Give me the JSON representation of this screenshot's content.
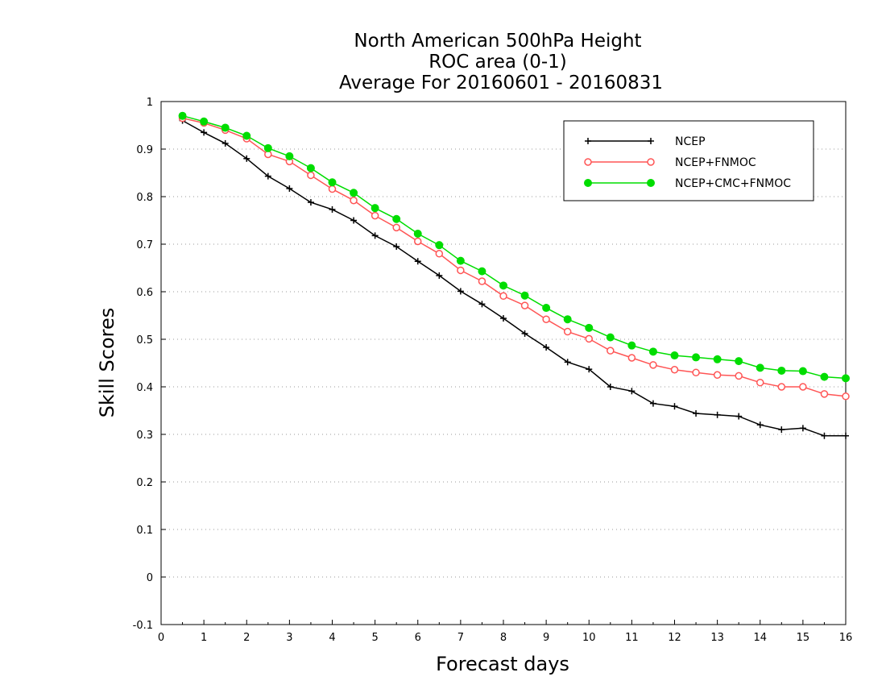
{
  "chart_data": {
    "type": "line",
    "title_lines": [
      "North American 500hPa Height",
      "ROC area (0-1)",
      "Average For 20160601 - 20160831"
    ],
    "xlabel": "Forecast days",
    "ylabel": "Skill Scores",
    "xlim": [
      0,
      16
    ],
    "ylim": [
      -0.1,
      1
    ],
    "x_ticks": [
      0,
      1,
      2,
      3,
      4,
      5,
      6,
      7,
      8,
      9,
      10,
      11,
      12,
      13,
      14,
      15,
      16
    ],
    "y_ticks": [
      -0.1,
      0,
      0.1,
      0.2,
      0.3,
      0.4,
      0.5,
      0.6,
      0.7,
      0.8,
      0.9,
      1
    ],
    "y_tick_labels": [
      "-0.1",
      "0",
      "0.1",
      "0.2",
      "0.3",
      "0.4",
      "0.5",
      "0.6",
      "0.7",
      "0.8",
      "0.9",
      "1"
    ],
    "grid": "horizontal dotted",
    "legend_position": "top-right",
    "x": [
      0.5,
      1,
      1.5,
      2,
      2.5,
      3,
      3.5,
      4,
      4.5,
      5,
      5.5,
      6,
      6.5,
      7,
      7.5,
      8,
      8.5,
      9,
      9.5,
      10,
      10.5,
      11,
      11.5,
      12,
      12.5,
      13,
      13.5,
      14,
      14.5,
      15,
      15.5,
      16
    ],
    "series": [
      {
        "name": "NCEP",
        "color": "#000000",
        "marker": "plus",
        "values": [
          0.96,
          0.935,
          0.912,
          0.88,
          0.843,
          0.817,
          0.788,
          0.773,
          0.75,
          0.718,
          0.695,
          0.664,
          0.634,
          0.601,
          0.574,
          0.544,
          0.512,
          0.483,
          0.452,
          0.437,
          0.4,
          0.391,
          0.365,
          0.359,
          0.344,
          0.341,
          0.338,
          0.32,
          0.31,
          0.313,
          0.297,
          0.297
        ]
      },
      {
        "name": "NCEP+FNMOC",
        "color": "#ff5555",
        "marker": "open-circle",
        "values": [
          0.965,
          0.955,
          0.94,
          0.922,
          0.889,
          0.874,
          0.845,
          0.816,
          0.792,
          0.76,
          0.735,
          0.706,
          0.68,
          0.645,
          0.622,
          0.591,
          0.571,
          0.542,
          0.516,
          0.501,
          0.476,
          0.461,
          0.446,
          0.436,
          0.43,
          0.425,
          0.423,
          0.409,
          0.4,
          0.4,
          0.385,
          0.38
        ]
      },
      {
        "name": "NCEP+CMC+FNMOC",
        "color": "#00dd00",
        "marker": "filled-circle",
        "values": [
          0.97,
          0.958,
          0.945,
          0.928,
          0.902,
          0.885,
          0.86,
          0.83,
          0.808,
          0.776,
          0.753,
          0.722,
          0.698,
          0.665,
          0.643,
          0.613,
          0.592,
          0.566,
          0.542,
          0.524,
          0.504,
          0.487,
          0.474,
          0.466,
          0.462,
          0.458,
          0.454,
          0.44,
          0.434,
          0.433,
          0.421,
          0.418
        ]
      }
    ]
  }
}
